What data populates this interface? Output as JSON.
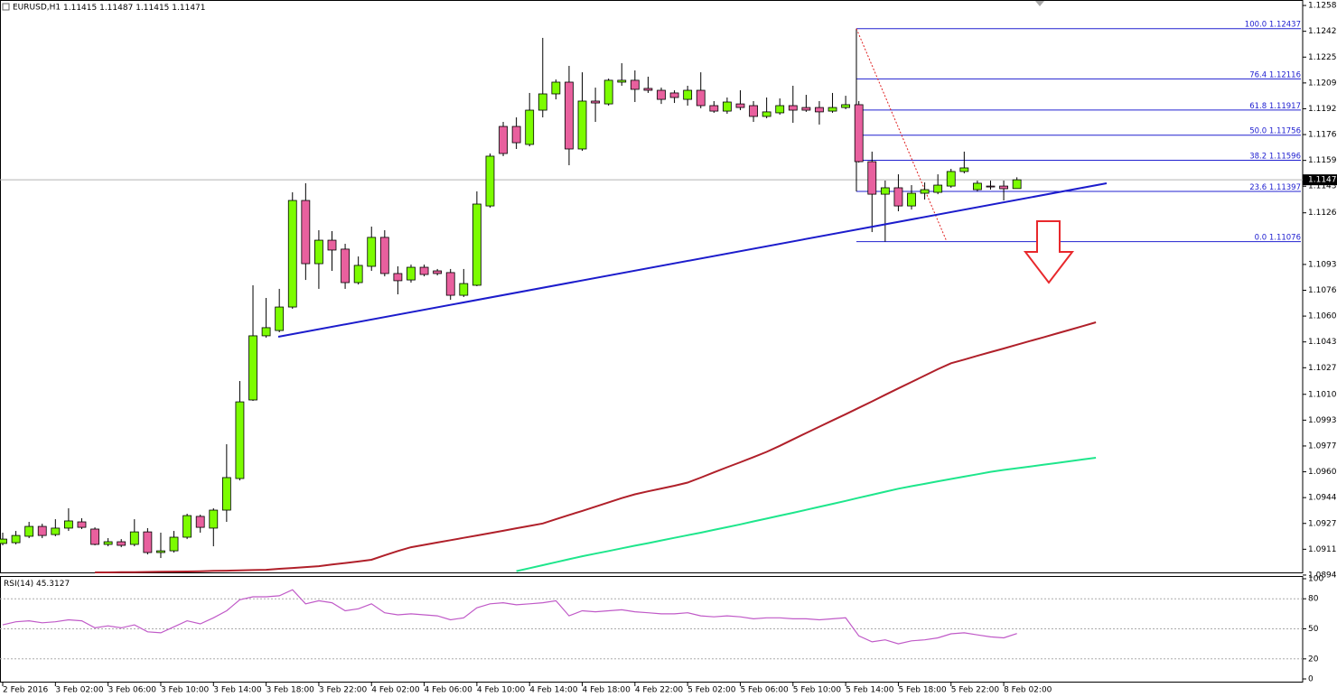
{
  "chart_data": {
    "type": "candlestick",
    "symbol": "EURUSD,H1",
    "header_ohlc": [
      1.11415,
      1.11487,
      1.11415,
      1.11471
    ],
    "categories": [
      "2 Feb 2016",
      null,
      null,
      null,
      "3 Feb 02:00",
      null,
      null,
      null,
      "3 Feb 06:00",
      null,
      null,
      null,
      "3 Feb 10:00",
      null,
      null,
      null,
      "3 Feb 14:00",
      null,
      null,
      null,
      "3 Feb 18:00",
      null,
      null,
      null,
      "3 Feb 22:00",
      null,
      null,
      null,
      "4 Feb 02:00",
      null,
      null,
      null,
      "4 Feb 06:00",
      null,
      null,
      null,
      "4 Feb 10:00",
      null,
      null,
      null,
      "4 Feb 14:00",
      null,
      null,
      null,
      "4 Feb 18:00",
      null,
      null,
      null,
      "4 Feb 22:00",
      null,
      null,
      null,
      "5 Feb 02:00",
      null,
      null,
      null,
      "5 Feb 06:00",
      null,
      null,
      null,
      "5 Feb 10:00",
      null,
      null,
      null,
      "5 Feb 14:00",
      null,
      null,
      null,
      "5 Feb 18:00",
      null,
      null,
      null,
      "5 Feb 22:00",
      null,
      null,
      null,
      "8 Feb 02:00",
      null,
      null,
      null,
      null,
      null,
      null,
      null
    ],
    "open": [
      1.09147,
      1.09152,
      1.09193,
      1.09256,
      1.09204,
      1.09245,
      1.09285,
      1.09239,
      1.09141,
      1.09158,
      1.09141,
      1.09221,
      1.09089,
      1.091,
      1.09187,
      1.0932,
      1.09245,
      1.0936,
      1.09562,
      1.10064,
      1.10474,
      1.10508,
      1.10658,
      1.11339,
      1.10935,
      1.11085,
      1.11028,
      1.10814,
      1.10918,
      1.11103,
      1.10872,
      1.10831,
      1.10912,
      1.10889,
      1.10878,
      1.10733,
      1.10797,
      1.11304,
      1.11812,
      1.11812,
      1.11697,
      1.11916,
      1.1202,
      1.12095,
      1.11668,
      1.11974,
      1.11956,
      1.12095,
      1.12107,
      1.12055,
      1.12043,
      1.12026,
      1.11985,
      1.12043,
      1.11945,
      1.1191,
      1.11956,
      1.11945,
      1.11876,
      1.11899,
      1.11945,
      1.11933,
      1.11933,
      1.1191,
      1.11933,
      1.11951,
      1.11587,
      1.11379,
      1.1142,
      1.11304,
      1.11385,
      1.11391,
      1.11431,
      1.11524,
      1.11408,
      1.11431,
      1.11431,
      1.11415,
      null,
      null,
      null,
      null,
      null,
      null
    ],
    "high": [
      1.09216,
      1.09227,
      1.09285,
      1.09273,
      1.09302,
      1.09372,
      1.09308,
      1.0925,
      1.09181,
      1.09175,
      1.09302,
      1.09245,
      1.09216,
      1.09227,
      1.09337,
      1.09331,
      1.09372,
      1.09781,
      1.10185,
      1.10797,
      1.10716,
      1.10774,
      1.11391,
      1.11449,
      1.11149,
      1.11143,
      1.11062,
      1.10981,
      1.11172,
      1.11149,
      1.10918,
      1.10929,
      1.10929,
      1.10901,
      1.10901,
      1.10901,
      1.11397,
      1.11639,
      1.11841,
      1.1187,
      1.12026,
      1.12378,
      1.12112,
      1.12199,
      1.12158,
      1.1206,
      1.12118,
      1.12216,
      1.1217,
      1.1213,
      1.1206,
      1.12043,
      1.12072,
      1.12158,
      1.11974,
      1.11997,
      1.12043,
      1.11974,
      1.11997,
      1.11991,
      1.12072,
      1.12014,
      1.11974,
      1.12026,
      1.12008,
      1.11974,
      1.11651,
      1.11466,
      1.11506,
      1.11437,
      1.11454,
      1.11506,
      1.11541,
      1.11651,
      1.11466,
      1.11466,
      1.11466,
      1.11487,
      null,
      null,
      null,
      null,
      null,
      null
    ],
    "low": [
      1.09135,
      1.09141,
      1.09181,
      1.09181,
      1.09193,
      1.09227,
      1.09239,
      1.09135,
      1.09129,
      1.09123,
      1.09129,
      1.09077,
      1.09054,
      1.09089,
      1.09175,
      1.09216,
      1.09129,
      1.09285,
      1.0955,
      1.10058,
      1.10462,
      1.10497,
      1.10647,
      1.10831,
      1.10774,
      1.10889,
      1.10774,
      1.10802,
      1.10889,
      1.10854,
      1.10739,
      1.10814,
      1.10854,
      1.1086,
      1.10704,
      1.10722,
      1.10791,
      1.11293,
      1.11622,
      1.11668,
      1.11685,
      1.1187,
      1.11985,
      1.11564,
      1.11656,
      1.11841,
      1.11945,
      1.12072,
      1.11968,
      1.12026,
      1.11956,
      1.11962,
      1.11945,
      1.11928,
      1.11899,
      1.11893,
      1.11916,
      1.11841,
      1.11864,
      1.11887,
      1.11835,
      1.11905,
      1.11824,
      1.11899,
      1.11922,
      1.11581,
      1.11137,
      1.11076,
      1.1127,
      1.11281,
      1.11345,
      1.11379,
      1.1142,
      1.11512,
      1.11397,
      1.11408,
      1.11339,
      1.11415,
      null,
      null,
      null,
      null,
      null,
      null
    ],
    "close": [
      1.09175,
      1.09198,
      1.09256,
      1.09198,
      1.09245,
      1.09291,
      1.0925,
      1.09141,
      1.09158,
      1.09135,
      1.09221,
      1.09089,
      1.091,
      1.09187,
      1.09325,
      1.0925,
      1.0936,
      1.09568,
      1.10052,
      1.10474,
      1.10526,
      1.10658,
      1.11339,
      1.10935,
      1.11085,
      1.11022,
      1.10814,
      1.10924,
      1.11103,
      1.10872,
      1.10826,
      1.10912,
      1.10866,
      1.10872,
      1.10733,
      1.10808,
      1.11316,
      1.11622,
      1.11639,
      1.11708,
      1.11916,
      1.1202,
      1.12095,
      1.11668,
      1.11974,
      1.11962,
      1.12107,
      1.12107,
      1.12049,
      1.12043,
      1.11985,
      1.11997,
      1.12043,
      1.11945,
      1.1191,
      1.11968,
      1.11933,
      1.11876,
      1.11905,
      1.11945,
      1.11916,
      1.11916,
      1.11905,
      1.11933,
      1.11951,
      1.11587,
      1.11379,
      1.1142,
      1.11304,
      1.11385,
      1.11408,
      1.11437,
      1.11524,
      1.11547,
      1.11449,
      1.11426,
      1.11414,
      1.11471,
      null,
      null,
      null,
      null,
      null,
      null
    ],
    "up_color": "#7cfc00",
    "down_color": "#e8609e",
    "series": [
      {
        "color": "#b0202a",
        "values": [
          null,
          null,
          null,
          null,
          null,
          null,
          null,
          1.08962,
          1.08962,
          1.08964,
          1.08964,
          1.08965,
          1.08966,
          1.08967,
          1.08968,
          1.08969,
          1.08972,
          1.08973,
          1.08975,
          1.08977,
          1.08979,
          1.08985,
          1.0899,
          1.08996,
          1.09002,
          1.09012,
          1.09022,
          1.09032,
          1.09043,
          1.09071,
          1.09099,
          1.09123,
          1.09138,
          1.09153,
          1.09168,
          1.09183,
          1.09198,
          1.09213,
          1.09228,
          1.09244,
          1.09259,
          1.09275,
          1.09302,
          1.09329,
          1.09355,
          1.09382,
          1.0941,
          1.09437,
          1.09461,
          1.0948,
          1.09498,
          1.09516,
          1.09536,
          1.09568,
          1.09601,
          1.09634,
          1.09666,
          1.09699,
          1.09732,
          1.09771,
          1.09812,
          1.09853,
          1.09893,
          1.09933,
          1.09973,
          1.10014,
          1.10055,
          1.10097,
          1.10138,
          1.10179,
          1.1022,
          1.10261,
          1.10299,
          1.10322,
          1.10346,
          1.1037,
          1.10393,
          1.10417,
          1.10441,
          1.10464,
          1.10488,
          1.10512,
          1.10536,
          1.1056
        ]
      },
      {
        "color": "#1ee68c",
        "values": [
          null,
          null,
          null,
          null,
          null,
          null,
          null,
          null,
          null,
          null,
          null,
          null,
          null,
          null,
          null,
          null,
          null,
          null,
          null,
          null,
          null,
          null,
          null,
          null,
          null,
          null,
          null,
          null,
          null,
          null,
          null,
          null,
          null,
          null,
          null,
          null,
          null,
          null,
          null,
          1.0897,
          1.08989,
          1.09008,
          1.09027,
          1.09046,
          1.09065,
          1.09082,
          1.09099,
          1.09116,
          1.09133,
          1.09149,
          1.09166,
          1.09183,
          1.092,
          1.09216,
          1.09234,
          1.09251,
          1.09269,
          1.09288,
          1.09306,
          1.09325,
          1.09343,
          1.09362,
          1.09381,
          1.094,
          1.09419,
          1.09439,
          1.09458,
          1.09478,
          1.09497,
          1.09513,
          1.09528,
          1.09544,
          1.09559,
          1.09574,
          1.09589,
          1.09605,
          1.09617,
          1.09628,
          1.09639,
          1.0965,
          1.09661,
          1.09672,
          1.09684,
          1.09695
        ]
      }
    ],
    "ylim": [
      1.08962,
      1.1262
    ],
    "yticks": [
      1.12585,
      {
        "value": 1.1242,
        "label": "1.12420"
      },
      1.12255,
      {
        "value": 1.1209,
        "label": "1.12090"
      },
      1.11925,
      {
        "value": 1.1176,
        "label": "1.11760"
      },
      1.11595,
      {
        "value": 1.1143,
        "label": "1.11430"
      },
      {
        "value": 1.1126,
        "label": "1.11260"
      },
      {
        "value": 1.1093,
        "label": "1.10930"
      },
      1.10765,
      {
        "value": 1.106,
        "label": "1.10600"
      },
      1.10435,
      {
        "value": 1.1027,
        "label": "1.10270"
      },
      {
        "value": 1.101,
        "label": "1.10100"
      },
      1.09935,
      {
        "value": 1.0977,
        "label": "1.09770"
      },
      1.09605,
      {
        "value": 1.0944,
        "label": "1.09440"
      },
      1.09275,
      {
        "value": 1.0911,
        "label": "1.09110"
      },
      1.08945
    ],
    "current_price": 1.11471,
    "fib_levels": [
      {
        "level": "100.0",
        "price": 1.12437
      },
      {
        "level": "76.4",
        "price": 1.12116
      },
      {
        "level": "61.8",
        "price": 1.11917
      },
      {
        "level": "50.0",
        "price": 1.11756
      },
      {
        "level": "38.2",
        "price": 1.11596
      },
      {
        "level": "23.6",
        "price": 1.11397
      },
      {
        "level": "0.0",
        "price": 1.11076
      }
    ],
    "rsi": {
      "title": "RSI(14)",
      "value": 45.3127,
      "color": "#c05ac8",
      "values": [
        54,
        57,
        58,
        56,
        57,
        59,
        58,
        51,
        53,
        51,
        54,
        47,
        46,
        52,
        58,
        55,
        61,
        68,
        79,
        82,
        82,
        83,
        89,
        75,
        78,
        76,
        68,
        70,
        75,
        66,
        64,
        65,
        64,
        63,
        59,
        61,
        71,
        75,
        76,
        74,
        75,
        76,
        78,
        63,
        68,
        67,
        68,
        69,
        67,
        66,
        65,
        65,
        66,
        63,
        62,
        63,
        62,
        60,
        61,
        61,
        60,
        60,
        59,
        60,
        61,
        43,
        37,
        39,
        35,
        38,
        39,
        41,
        45,
        46,
        44,
        42,
        41,
        45.3127,
        null,
        null,
        null,
        null,
        null,
        null
      ],
      "ylim": [
        0,
        100
      ],
      "yticks": [
        100,
        80,
        50,
        20,
        0
      ]
    }
  }
}
